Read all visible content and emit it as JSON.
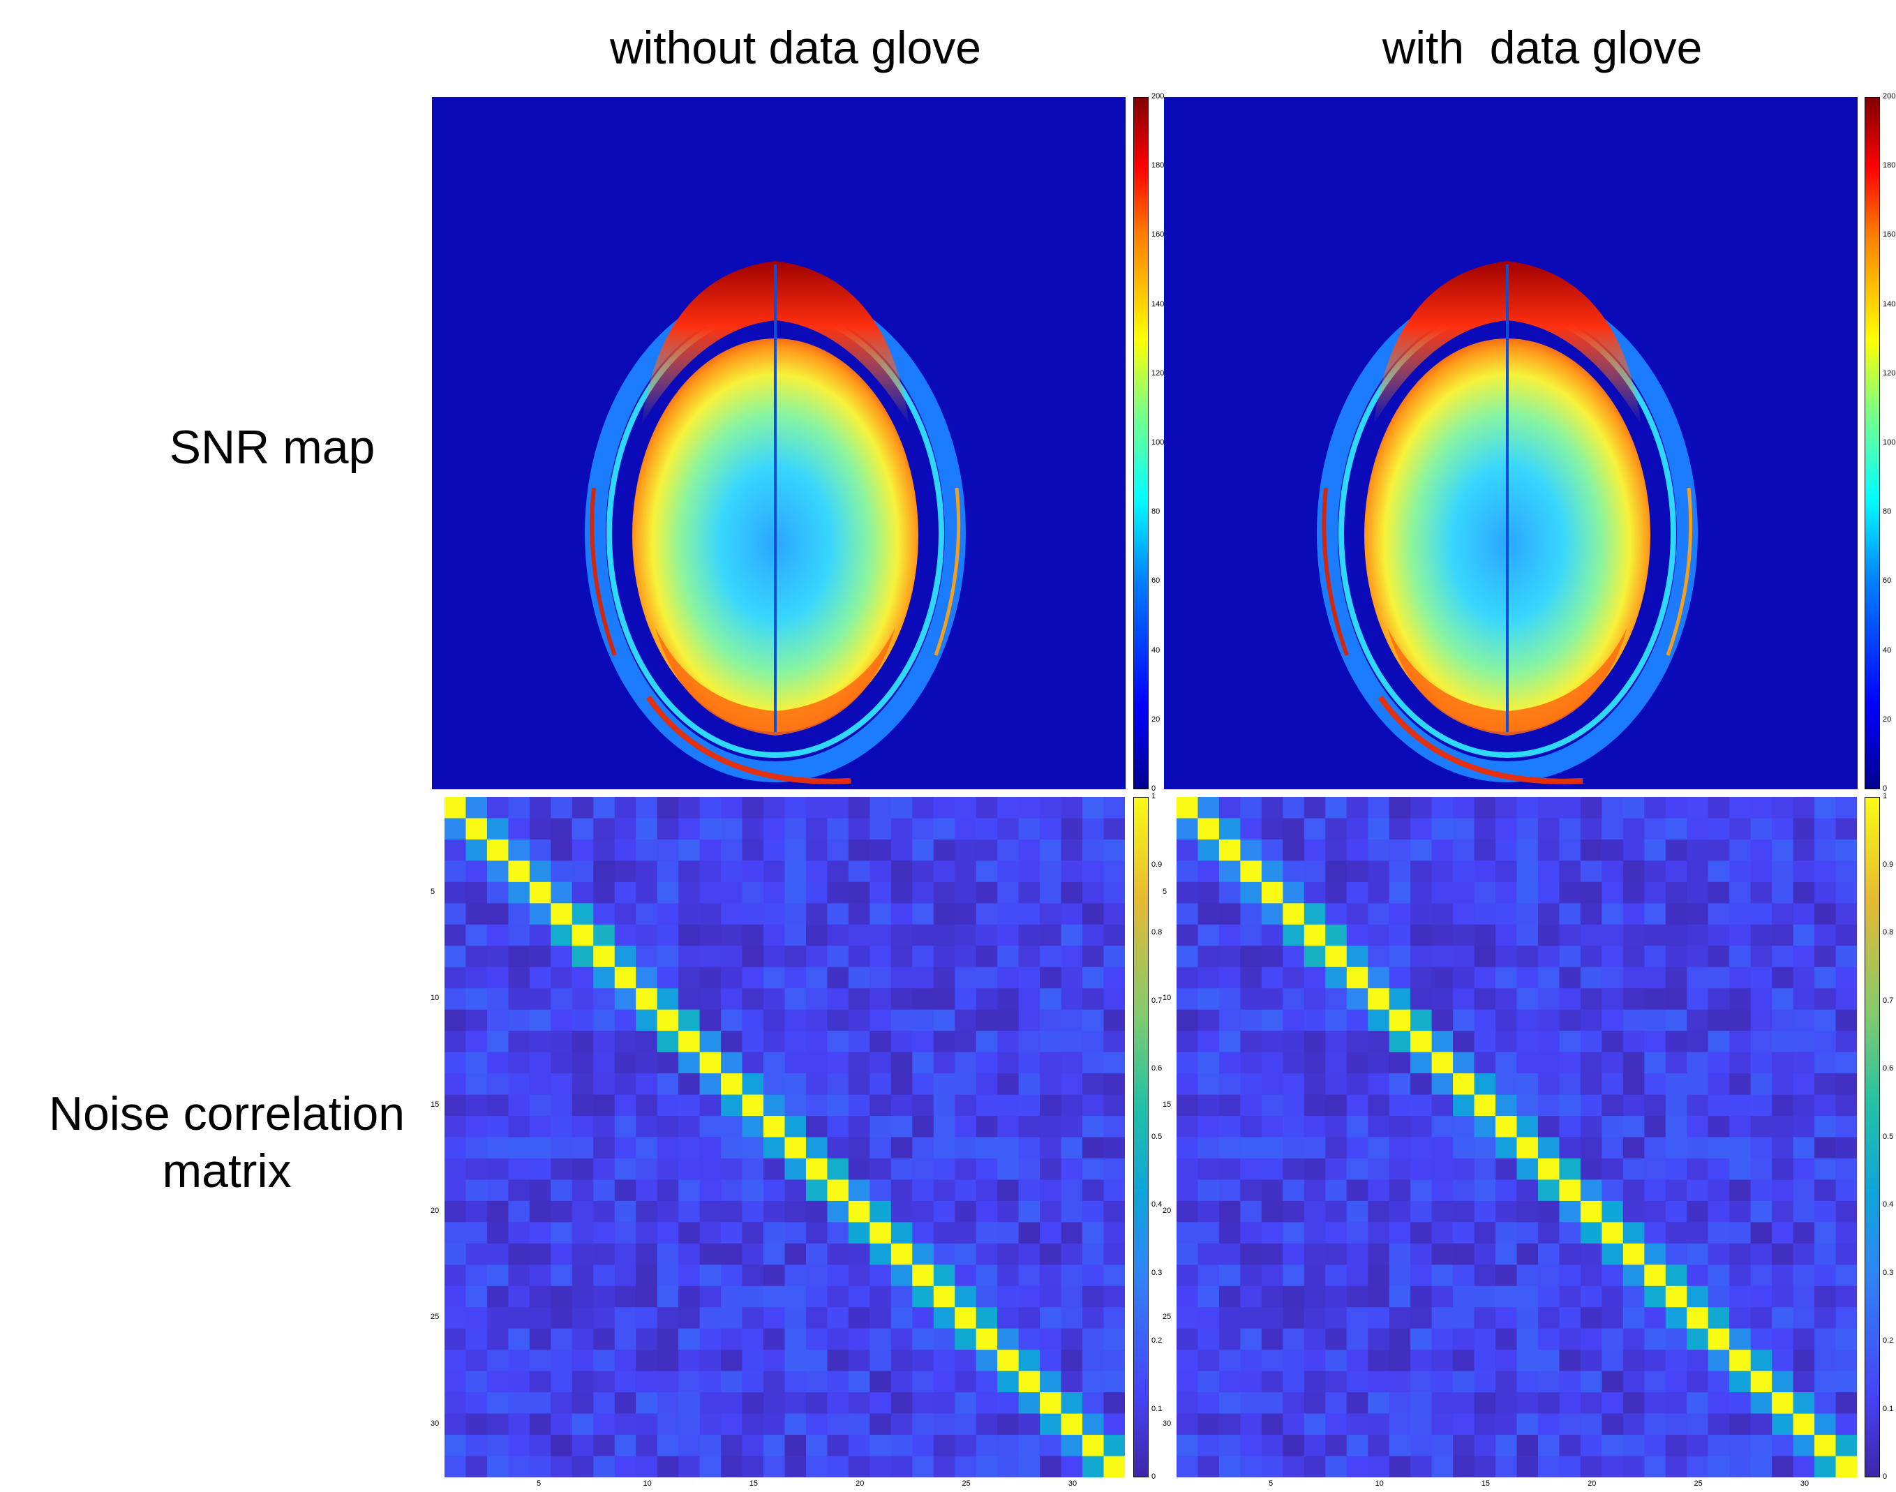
{
  "titles": {
    "left": "without data glove",
    "right": "with  data glove"
  },
  "rows": {
    "snr": "SNR map",
    "noise_line1": "Noise correlation",
    "noise_line2": "matrix"
  },
  "colors": {
    "mri_background": "#0a0ab8",
    "matrix_background": "#3b2fd0",
    "diagonal": "#f9fb15"
  },
  "snr_colorbar_ticks": [
    "200",
    "180",
    "160",
    "140",
    "120",
    "100",
    "80",
    "60",
    "40",
    "20",
    "0"
  ],
  "corr_colorbar_ticks": [
    "1",
    "0.9",
    "0.8",
    "0.7",
    "0.6",
    "0.5",
    "0.4",
    "0.3",
    "0.2",
    "0.1",
    "0"
  ],
  "matrix_axis_ticks": [
    "5",
    "10",
    "15",
    "20",
    "25",
    "30"
  ],
  "matrix_size": 32
}
